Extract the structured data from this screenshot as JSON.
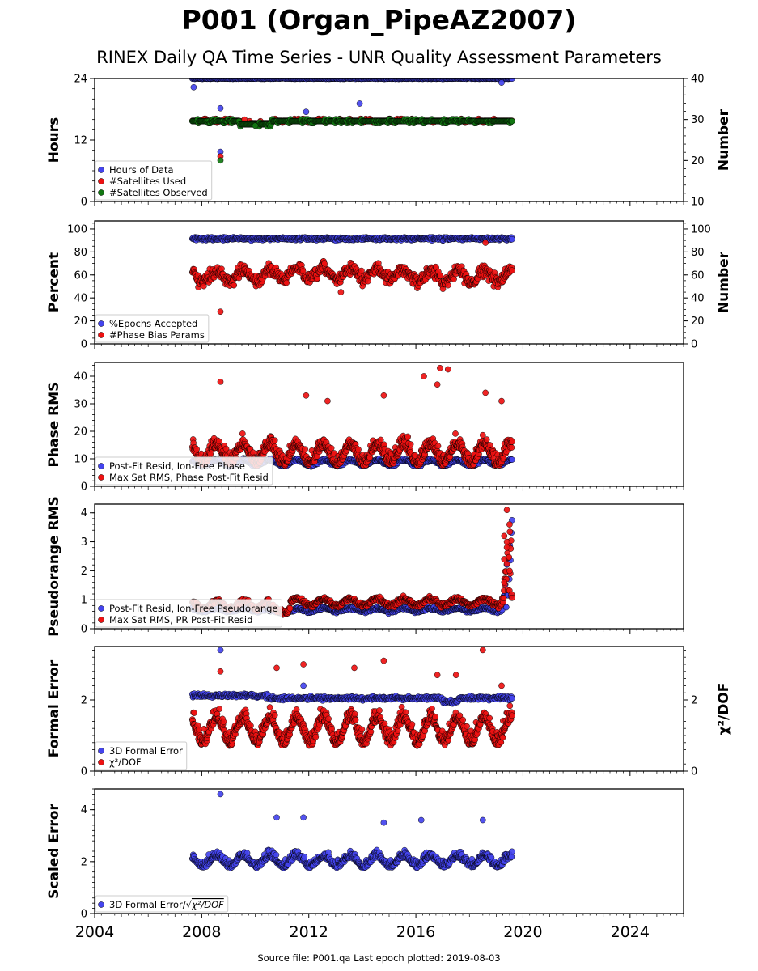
{
  "title": "P001 (Organ_PipeAZ2007)",
  "subtitle": "RINEX Daily QA Time Series - UNR Quality Assessment Parameters",
  "footer": "Source file: P001.qa Last epoch plotted: 2019-08-03",
  "colors": {
    "blue": "#4444ee",
    "red": "#ee1111",
    "green": "#117711",
    "edge": "#000000"
  },
  "chart_data": [
    {
      "type": "scatter",
      "ylabel": "Hours",
      "ylabel_right": "Number",
      "xlim": [
        2004,
        2026
      ],
      "ylim": [
        0,
        24
      ],
      "ylim_right": [
        10,
        40
      ],
      "yticks": [
        0,
        12,
        24
      ],
      "yticks_right": [
        10,
        20,
        30,
        40
      ],
      "legend_position": "lower-left",
      "series": [
        {
          "name": "Hours of Data",
          "color": "blue",
          "axis": "left",
          "typical": 24,
          "points": [
            [
              2007.7,
              22.3
            ],
            [
              2008.7,
              18.2
            ],
            [
              2008.7,
              9.7
            ],
            [
              2011.9,
              17.5
            ],
            [
              2013.9,
              19.1
            ],
            [
              2019.2,
              23.2
            ]
          ]
        },
        {
          "name": "#Satellites Used",
          "color": "red",
          "axis": "right",
          "typical": 29.5,
          "points": [
            [
              2008.7,
              21.0
            ],
            [
              2009.6,
              30.0
            ]
          ]
        },
        {
          "name": "#Satellites Observed",
          "color": "green",
          "axis": "right",
          "typical": 30.0,
          "points": [
            [
              2008.7,
              20.0
            ],
            [
              2010.0,
              28.5
            ]
          ]
        }
      ]
    },
    {
      "type": "scatter",
      "ylabel": "Percent",
      "ylabel_right": "Number",
      "xlim": [
        2004,
        2026
      ],
      "ylim": [
        0,
        107
      ],
      "ylim_right": [
        0,
        107
      ],
      "yticks": [
        0,
        20,
        40,
        60,
        80,
        100
      ],
      "yticks_right": [
        0,
        20,
        40,
        60,
        80,
        100
      ],
      "legend_position": "lower-left",
      "series": [
        {
          "name": "%Epochs Accepted",
          "color": "blue",
          "axis": "left",
          "typical": 91
        },
        {
          "name": "#Phase Bias Params",
          "color": "red",
          "axis": "right",
          "typical": 60,
          "points": [
            [
              2008.7,
              28
            ],
            [
              2018.6,
              88
            ],
            [
              2013.2,
              45
            ]
          ]
        }
      ]
    },
    {
      "type": "scatter",
      "ylabel": "Phase RMS",
      "xlim": [
        2004,
        2026
      ],
      "ylim": [
        0,
        45
      ],
      "yticks": [
        0,
        10,
        20,
        30,
        40
      ],
      "legend_position": "lower-left",
      "series": [
        {
          "name": "Post-Fit Resid, Ion-Free Phase",
          "color": "blue",
          "axis": "left",
          "typical": 8.5
        },
        {
          "name": "Max Sat RMS, Phase Post-Fit Resid",
          "color": "red",
          "axis": "left",
          "typical": 13,
          "points": [
            [
              2008.7,
              38
            ],
            [
              2016.3,
              40
            ],
            [
              2016.9,
              43
            ],
            [
              2017.2,
              42.5
            ],
            [
              2016.8,
              37
            ],
            [
              2011.9,
              33
            ],
            [
              2014.8,
              33
            ],
            [
              2018.6,
              34
            ],
            [
              2019.2,
              31
            ],
            [
              2012.7,
              31
            ]
          ]
        }
      ]
    },
    {
      "type": "scatter",
      "ylabel": "Pseudorange RMS",
      "xlim": [
        2004,
        2026
      ],
      "ylim": [
        0,
        4.3
      ],
      "yticks": [
        0,
        1,
        2,
        3,
        4
      ],
      "legend_position": "lower-left",
      "series": [
        {
          "name": "Post-Fit Resid, Ion-Free Pseudorange",
          "color": "blue",
          "axis": "left",
          "typical": 0.7
        },
        {
          "name": "Max Sat RMS, PR Post-Fit Resid",
          "color": "red",
          "axis": "left",
          "typical": 0.85,
          "points": [
            [
              2019.4,
              4.1
            ],
            [
              2019.5,
              3.6
            ],
            [
              2019.3,
              3.2
            ],
            [
              2019.4,
              2.8
            ],
            [
              2019.3,
              2.4
            ],
            [
              2019.5,
              2.0
            ],
            [
              2019.3,
              1.6
            ],
            [
              2019.4,
              3.0
            ]
          ]
        }
      ]
    },
    {
      "type": "scatter",
      "ylabel": "Formal Error",
      "ylabel_right": "χ²/DOF",
      "xlim": [
        2004,
        2026
      ],
      "ylim": [
        0,
        3.5
      ],
      "ylim_right": [
        0,
        3.5
      ],
      "yticks": [
        0,
        2
      ],
      "yticks_right": [
        0,
        2
      ],
      "legend_position": "lower-left",
      "series": [
        {
          "name": "3D Formal Error",
          "color": "blue",
          "axis": "left",
          "typical": 2.05,
          "points": [
            [
              2008.7,
              3.4
            ],
            [
              2011.8,
              2.4
            ]
          ]
        },
        {
          "name": "χ²/DOF",
          "color": "red",
          "axis": "right",
          "typical": 1.2,
          "points": [
            [
              2018.5,
              3.4
            ],
            [
              2014.8,
              3.1
            ],
            [
              2011.8,
              3.0
            ],
            [
              2010.8,
              2.9
            ],
            [
              2008.7,
              2.8
            ],
            [
              2016.8,
              2.7
            ],
            [
              2013.7,
              2.9
            ],
            [
              2017.5,
              2.7
            ],
            [
              2019.2,
              2.4
            ]
          ]
        }
      ]
    },
    {
      "type": "scatter",
      "ylabel": "Scaled Error",
      "xlim": [
        2004,
        2026
      ],
      "ylim": [
        0,
        4.8
      ],
      "yticks": [
        0,
        2,
        4
      ],
      "xticks": [
        2004,
        2008,
        2012,
        2016,
        2020,
        2024
      ],
      "legend_position": "lower-left",
      "series": [
        {
          "name": "3D Formal Error/√χ²/DOF",
          "legend": {
            "prefix": "3D Formal Error/",
            "radicand": "χ²/DOF"
          },
          "color": "blue",
          "axis": "left",
          "typical": 2.0,
          "points": [
            [
              2008.7,
              4.6
            ],
            [
              2010.8,
              3.7
            ],
            [
              2011.8,
              3.7
            ],
            [
              2018.5,
              3.6
            ],
            [
              2014.8,
              3.5
            ],
            [
              2016.2,
              3.6
            ]
          ]
        }
      ]
    }
  ]
}
